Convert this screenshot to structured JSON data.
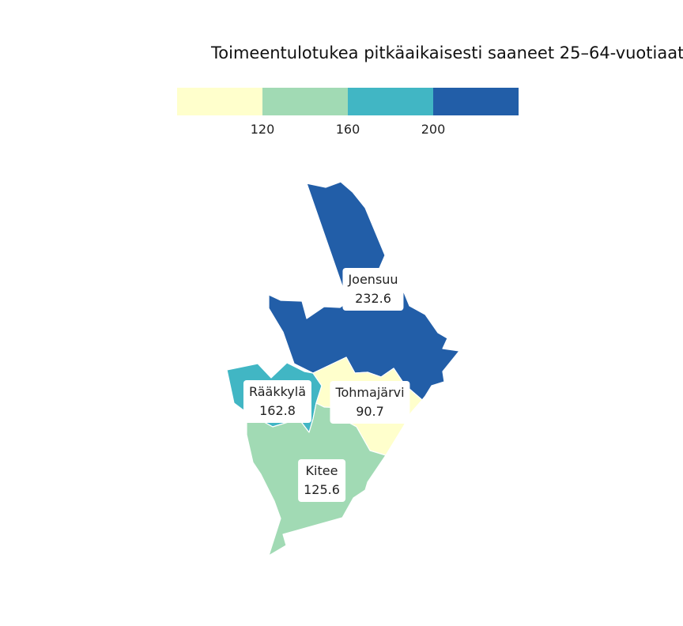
{
  "title": "Toimeentulotukea pitkäaikaisesti saaneet 25–64-vuotiaat",
  "legend": {
    "colors": [
      "#ffffcc",
      "#a1dab4",
      "#41b6c4",
      "#225ea8"
    ],
    "ticks": [
      "120",
      "160",
      "200"
    ]
  },
  "regions": [
    {
      "name": "Joensuu",
      "value": "232.6",
      "color": "#225ea8"
    },
    {
      "name": "Rääkkylä",
      "value": "162.8",
      "color": "#41b6c4"
    },
    {
      "name": "Tohmajärvi",
      "value": "90.7",
      "color": "#ffffcc"
    },
    {
      "name": "Kitee",
      "value": "125.6",
      "color": "#a1dab4"
    }
  ]
}
